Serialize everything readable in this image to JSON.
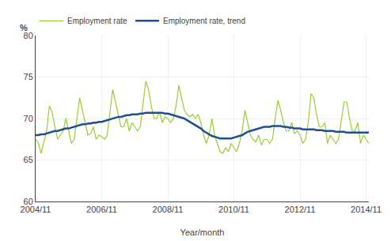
{
  "chart_data": {
    "type": "line",
    "title": "",
    "xlabel": "Year/month",
    "ylabel": "%",
    "categories": [
      "2004/11",
      null,
      null,
      null,
      null,
      null,
      null,
      null,
      null,
      null,
      null,
      null,
      null,
      null,
      null,
      null,
      null,
      null,
      null,
      null,
      null,
      null,
      null,
      null,
      "2006/11",
      null,
      null,
      null,
      null,
      null,
      null,
      null,
      null,
      null,
      null,
      null,
      null,
      null,
      null,
      null,
      null,
      null,
      null,
      null,
      null,
      null,
      null,
      null,
      "2008/11",
      null,
      null,
      null,
      null,
      null,
      null,
      null,
      null,
      null,
      null,
      null,
      null,
      null,
      null,
      null,
      null,
      null,
      null,
      null,
      null,
      null,
      null,
      null,
      "2010/11",
      null,
      null,
      null,
      null,
      null,
      null,
      null,
      null,
      null,
      null,
      null,
      null,
      null,
      null,
      null,
      null,
      null,
      null,
      null,
      null,
      null,
      null,
      null,
      "2012/11",
      null,
      null,
      null,
      null,
      null,
      null,
      null,
      null,
      null,
      null,
      null,
      null,
      null,
      null,
      null,
      null,
      null,
      null,
      null,
      null,
      null,
      null,
      null,
      "2014/11",
      null
    ],
    "series": [
      {
        "name": "Employment rate",
        "color": "#9ACD32",
        "values": [
          67.5,
          67.0,
          65.8,
          67.2,
          68.5,
          71.5,
          70.8,
          69.0,
          67.5,
          68.0,
          68.5,
          70.0,
          68.5,
          67.0,
          67.5,
          70.2,
          72.5,
          71.0,
          69.5,
          68.0,
          68.2,
          69.0,
          67.5,
          68.0,
          67.8,
          67.5,
          68.0,
          70.5,
          73.5,
          72.0,
          70.5,
          69.0,
          69.0,
          70.0,
          68.5,
          69.5,
          69.0,
          68.5,
          69.0,
          71.5,
          74.5,
          73.5,
          71.5,
          70.0,
          70.0,
          70.8,
          69.5,
          70.2,
          70.0,
          69.5,
          70.0,
          71.5,
          74.0,
          72.5,
          71.0,
          70.5,
          70.2,
          70.5,
          70.0,
          70.5,
          69.5,
          68.0,
          67.0,
          68.0,
          70.0,
          68.0,
          67.0,
          66.0,
          65.8,
          66.5,
          66.0,
          67.0,
          66.5,
          66.0,
          67.0,
          68.5,
          71.0,
          69.5,
          68.0,
          67.5,
          67.2,
          68.0,
          66.8,
          67.5,
          67.5,
          67.0,
          67.5,
          70.0,
          72.2,
          71.0,
          69.5,
          68.5,
          68.5,
          69.5,
          68.2,
          68.5,
          68.0,
          67.0,
          67.5,
          69.5,
          73.0,
          72.5,
          70.5,
          69.0,
          69.0,
          69.5,
          67.0,
          68.0,
          67.5,
          67.0,
          67.5,
          70.0,
          72.0,
          72.0,
          70.0,
          68.5,
          68.5,
          69.5,
          67.0,
          68.0,
          67.5,
          67.0
        ]
      },
      {
        "name": "Employment rate, trend",
        "color": "#1F4E96",
        "values": [
          68.0,
          68.0,
          68.1,
          68.1,
          68.2,
          68.3,
          68.4,
          68.5,
          68.5,
          68.6,
          68.7,
          68.8,
          68.8,
          68.9,
          69.0,
          69.1,
          69.2,
          69.3,
          69.3,
          69.4,
          69.4,
          69.5,
          69.5,
          69.6,
          69.6,
          69.7,
          69.8,
          69.9,
          70.0,
          70.1,
          70.2,
          70.2,
          70.3,
          70.4,
          70.4,
          70.5,
          70.5,
          70.5,
          70.6,
          70.6,
          70.7,
          70.7,
          70.7,
          70.7,
          70.7,
          70.7,
          70.7,
          70.6,
          70.6,
          70.5,
          70.4,
          70.3,
          70.2,
          70.1,
          70.0,
          69.8,
          69.6,
          69.4,
          69.2,
          69.0,
          68.8,
          68.5,
          68.3,
          68.1,
          67.9,
          67.8,
          67.7,
          67.6,
          67.6,
          67.6,
          67.6,
          67.6,
          67.7,
          67.8,
          67.9,
          68.0,
          68.2,
          68.4,
          68.5,
          68.6,
          68.7,
          68.8,
          68.9,
          69.0,
          69.0,
          69.0,
          69.1,
          69.1,
          69.1,
          69.1,
          69.0,
          69.0,
          68.9,
          68.9,
          68.8,
          68.8,
          68.8,
          68.7,
          68.7,
          68.7,
          68.7,
          68.7,
          68.6,
          68.6,
          68.6,
          68.5,
          68.5,
          68.5,
          68.5,
          68.4,
          68.4,
          68.4,
          68.4,
          68.3,
          68.3,
          68.3,
          68.3,
          68.3,
          68.3,
          68.3,
          68.3,
          68.3
        ]
      }
    ],
    "ylim": [
      60,
      80
    ],
    "yticks": [
      60,
      65,
      70,
      75,
      80
    ],
    "grid": true,
    "legend": "upper left"
  }
}
